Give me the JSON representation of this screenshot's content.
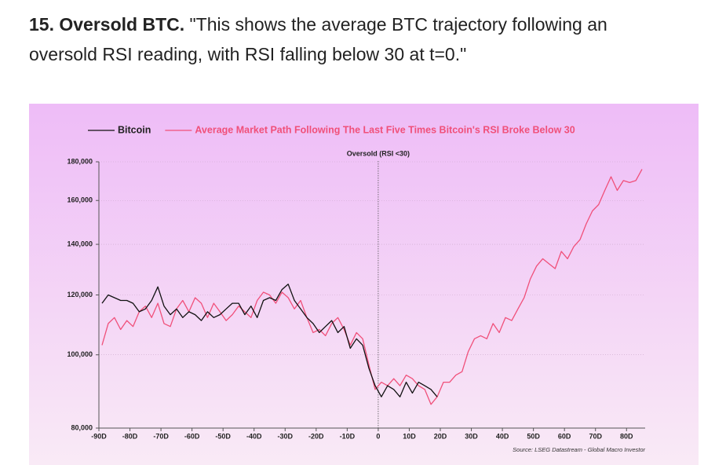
{
  "heading": {
    "title": "15. Oversold BTC.",
    "quote": "\"This shows the average BTC trajectory following an oversold RSI reading, with RSI falling below 30 at t=0.\""
  },
  "chart_data": {
    "type": "line",
    "log_y": true,
    "grid": true,
    "legend": "top",
    "annotation": {
      "text": "Oversold (RSI <30)",
      "x": 0
    },
    "source": "Source: LSEG Datastream - Global Macro Investor",
    "xlim": [
      -90,
      86
    ],
    "xticks": [
      {
        "value": -90,
        "label": "-90D"
      },
      {
        "value": -80,
        "label": "-80D"
      },
      {
        "value": -70,
        "label": "-70D"
      },
      {
        "value": -60,
        "label": "-60D"
      },
      {
        "value": -50,
        "label": "-50D"
      },
      {
        "value": -40,
        "label": "-40D"
      },
      {
        "value": -30,
        "label": "-30D"
      },
      {
        "value": -20,
        "label": "-20D"
      },
      {
        "value": -10,
        "label": "-10D"
      },
      0,
      {
        "value": 10,
        "label": "10D"
      },
      {
        "value": 20,
        "label": "20D"
      },
      {
        "value": 30,
        "label": "30D"
      },
      {
        "value": 40,
        "label": "40D"
      },
      {
        "value": 50,
        "label": "50D"
      },
      {
        "value": 60,
        "label": "60D"
      },
      {
        "value": 70,
        "label": "70D"
      },
      {
        "value": 80,
        "label": "80D"
      }
    ],
    "ylim": [
      80000,
      180000
    ],
    "yticks": [
      {
        "value": 80000,
        "label": "80,000"
      },
      {
        "value": 100000,
        "label": "100,000"
      },
      {
        "value": 120000,
        "label": "120,000"
      },
      {
        "value": 140000,
        "label": "140,000"
      },
      {
        "value": 160000,
        "label": "160,000"
      },
      {
        "value": 180000,
        "label": "180,000"
      }
    ],
    "x": [
      -89,
      -87,
      -85,
      -83,
      -81,
      -79,
      -77,
      -75,
      -73,
      -71,
      -69,
      -67,
      -65,
      -63,
      -61,
      -59,
      -57,
      -55,
      -53,
      -51,
      -49,
      -47,
      -45,
      -43,
      -41,
      -39,
      -37,
      -35,
      -33,
      -31,
      -29,
      -27,
      -25,
      -23,
      -21,
      -19,
      -17,
      -15,
      -13,
      -11,
      -9,
      -7,
      -5,
      -3,
      -1,
      1,
      3,
      5,
      7,
      9,
      11,
      13,
      15,
      17,
      19,
      21,
      23,
      25,
      27,
      29,
      31,
      33,
      35,
      37,
      39,
      41,
      43,
      45,
      47,
      49,
      51,
      53,
      55,
      57,
      59,
      61,
      63,
      65,
      67,
      69,
      71,
      73,
      75,
      77,
      79,
      81,
      83,
      85
    ],
    "series": [
      {
        "name": "Bitcoin",
        "color": "#111111",
        "values": [
          117000,
          120000,
          119000,
          118000,
          118000,
          117000,
          114000,
          115000,
          118000,
          123000,
          116000,
          113000,
          115000,
          112000,
          114000,
          113000,
          111000,
          114000,
          112000,
          113000,
          115000,
          117000,
          117000,
          113000,
          116000,
          112000,
          118000,
          119000,
          118000,
          122000,
          124000,
          118000,
          115000,
          112000,
          110000,
          107000,
          109000,
          111000,
          107000,
          109000,
          102000,
          105000,
          103000,
          96000,
          91000,
          88000,
          91000,
          90000,
          88000,
          92000,
          89000,
          92000,
          91000,
          90000,
          88000,
          null,
          null,
          null,
          null,
          null,
          null,
          null,
          null,
          null,
          null,
          null,
          null,
          null,
          null,
          null,
          null,
          null,
          null,
          null,
          null,
          null,
          null,
          null,
          null,
          null,
          null,
          null,
          null,
          null,
          null,
          null,
          null,
          null
        ]
      },
      {
        "name": "Average Market Path Following The Last Five Times Bitcoin's RSI Broke Below 30",
        "color": "#f0507a",
        "values": [
          103000,
          110000,
          112000,
          108000,
          111000,
          109000,
          114000,
          116000,
          112000,
          117000,
          110000,
          109000,
          115000,
          118000,
          114000,
          119000,
          117000,
          112000,
          117000,
          114000,
          111000,
          113000,
          116000,
          114000,
          112000,
          118000,
          121000,
          120000,
          117000,
          121000,
          119000,
          115000,
          118000,
          112000,
          107000,
          108000,
          106000,
          110000,
          112000,
          108000,
          103000,
          107000,
          105000,
          97000,
          90000,
          92000,
          91000,
          93000,
          91000,
          94000,
          93000,
          91000,
          90000,
          86000,
          88000,
          92000,
          92000,
          94000,
          95000,
          101000,
          105000,
          106000,
          105000,
          110000,
          107000,
          112000,
          111000,
          115000,
          119000,
          126000,
          131000,
          134000,
          132000,
          130000,
          137000,
          134000,
          139000,
          142000,
          149000,
          155000,
          158000,
          165000,
          172000,
          165000,
          170000,
          169000,
          170000,
          176000
        ]
      }
    ]
  }
}
